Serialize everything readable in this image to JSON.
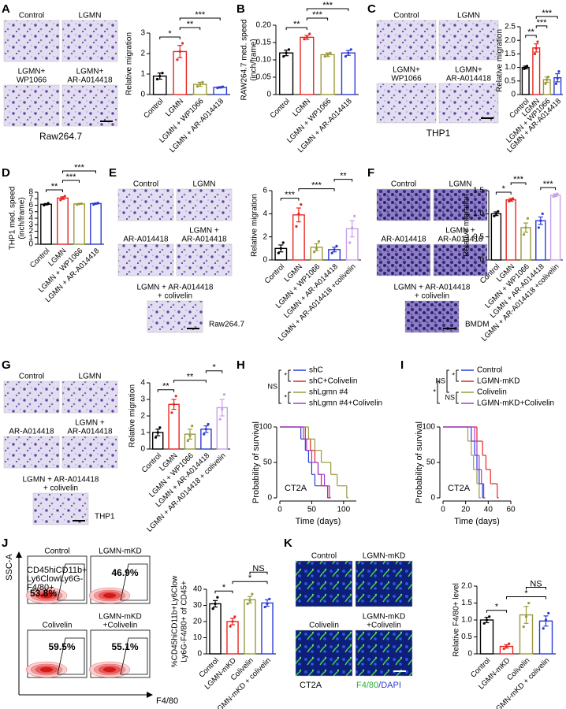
{
  "panel_letters": [
    "A",
    "B",
    "C",
    "D",
    "E",
    "F",
    "G",
    "H",
    "I",
    "J",
    "K"
  ],
  "micrographs": {
    "A": {
      "labels": [
        [
          "Control"
        ],
        [
          "LGMN"
        ],
        [
          "LGMN+",
          "WP1066"
        ],
        [
          "LGMN+",
          "AR-A014418"
        ]
      ],
      "caption": "Raw264.7"
    },
    "C": {
      "labels": [
        [
          "Control"
        ],
        [
          "LGMN"
        ],
        [
          "LGMN+",
          "WP1066"
        ],
        [
          "LGMN+",
          "AR-A014418"
        ]
      ],
      "caption": "THP1"
    },
    "E": {
      "labels": [
        [
          "Control"
        ],
        [
          "LGMN"
        ],
        [
          "AR-A014418"
        ],
        [
          "LGMN +",
          "AR-A014418"
        ],
        [
          "LGMN + AR-A014418",
          "+ colivelin"
        ]
      ],
      "caption": "Raw264.7"
    },
    "F": {
      "labels": [
        [
          "Control"
        ],
        [
          "LGMN"
        ],
        [
          "AR-A014418"
        ],
        [
          "LGMN +",
          "AR-A014418"
        ],
        [
          "LGMN + AR-A014418",
          "+ colivelin"
        ]
      ],
      "caption": "BMDM"
    },
    "G": {
      "labels": [
        [
          "Control"
        ],
        [
          "LGMN"
        ],
        [
          "AR-A014418"
        ],
        [
          "LGMN +",
          "AR-A014418"
        ],
        [
          "LGMN + AR-A014418",
          "+ colivelin"
        ]
      ],
      "caption": "THP1"
    },
    "K": {
      "labels": [
        [
          "Control"
        ],
        [
          "LGMN-mKD"
        ],
        [
          "Colivelin"
        ],
        [
          "LGMN-mKD",
          "+Colivelin"
        ]
      ],
      "caption": "CT2A",
      "stain": [
        "F4/80",
        "/DAPI"
      ]
    }
  },
  "flow": {
    "labels": [
      [
        "Control"
      ],
      [
        "LGMN-mKD"
      ],
      [
        "Colivelin"
      ],
      [
        "LGMN-mKD",
        "+Colivelin"
      ]
    ],
    "percents": [
      "53.8%",
      "46.9%",
      "59.5%",
      "55.1%"
    ],
    "gate": [
      "CD45hiCD11b+",
      "Ly6ClowLy6G-",
      "F4/80+"
    ],
    "ylabel": "SSC-A",
    "xlabel": "F4/80"
  },
  "chart_data": [
    {
      "type": "bar",
      "ylabel": "Relative migration",
      "categories": [
        "Control",
        "LGMN",
        "LGMN + WP1066",
        "LGMN + AR-A014418"
      ],
      "colors": [
        "#000000",
        "#e8251f",
        "#9a9a3c",
        "#2b3bd6"
      ],
      "values": [
        0.9,
        2.1,
        0.5,
        0.35
      ],
      "errors": [
        0.15,
        0.3,
        0.1,
        0.03
      ],
      "points": [
        [
          0.75,
          0.9,
          1.05
        ],
        [
          1.7,
          2.1,
          2.5
        ],
        [
          0.4,
          0.5,
          0.6
        ],
        [
          0.32,
          0.35,
          0.38
        ]
      ],
      "ylim": [
        0,
        3
      ],
      "yticks": [
        0,
        1,
        2,
        3
      ],
      "significance": [
        {
          "pair": [
            "Control",
            "LGMN"
          ],
          "label": "*"
        },
        {
          "pair": [
            "LGMN",
            "LGMN + WP1066"
          ],
          "label": "**"
        },
        {
          "pair": [
            "LGMN",
            "LGMN + AR-A014418"
          ],
          "label": "***"
        }
      ]
    },
    {
      "type": "bar",
      "ylabel": [
        "RAW264.7 med. speed",
        "(inch/frame)"
      ],
      "categories": [
        "Control",
        "LGMN",
        "LGMN + WP1066",
        "LGMN + AR-A014418"
      ],
      "colors": [
        "#000000",
        "#e8251f",
        "#9a9a3c",
        "#2b3bd6"
      ],
      "values": [
        0.12,
        0.165,
        0.115,
        0.12
      ],
      "errors": [
        0.008,
        0.006,
        0.005,
        0.007
      ],
      "points": [
        [
          0.11,
          0.12,
          0.13
        ],
        [
          0.16,
          0.165,
          0.175
        ],
        [
          0.11,
          0.115,
          0.12
        ],
        [
          0.11,
          0.12,
          0.13
        ]
      ],
      "ylim": [
        0,
        0.2
      ],
      "yticks": [
        0,
        0.05,
        {
          "value": 0.1,
          "label": "0.10"
        },
        0.15,
        {
          "value": 0.2,
          "label": "0.20"
        }
      ],
      "significance": [
        {
          "pair": [
            "Control",
            "LGMN"
          ],
          "label": "**"
        },
        {
          "pair": [
            "LGMN",
            "LGMN + WP1066"
          ],
          "label": "***"
        },
        {
          "pair": [
            "LGMN",
            "LGMN + AR-A014418"
          ],
          "label": "***"
        }
      ]
    },
    {
      "type": "bar",
      "ylabel": "Relative migration",
      "categories": [
        "Control",
        "LGMN",
        "LGMN + WP1066",
        "LGMN + AR-A014418"
      ],
      "colors": [
        "#000000",
        "#e8251f",
        "#9a9a3c",
        "#2b3bd6"
      ],
      "values": [
        1.0,
        1.72,
        0.55,
        0.62
      ],
      "errors": [
        0.05,
        0.15,
        0.1,
        0.15
      ],
      "points": [
        [
          0.95,
          1.0,
          1.05
        ],
        [
          1.5,
          1.7,
          1.95
        ],
        [
          0.4,
          0.55,
          0.65
        ],
        [
          0.4,
          0.6,
          0.85
        ]
      ],
      "ylim": [
        0,
        2.5
      ],
      "yticks": [
        0,
        0.5,
        {
          "value": 1,
          "label": "1.0"
        },
        1.5,
        {
          "value": 2,
          "label": "2.0"
        },
        2.5
      ],
      "significance": [
        {
          "pair": [
            "Control",
            "LGMN"
          ],
          "label": "**"
        },
        {
          "pair": [
            "LGMN",
            "LGMN + WP1066"
          ],
          "label": "***"
        },
        {
          "pair": [
            "LGMN",
            "LGMN + AR-A014418"
          ],
          "label": "***"
        }
      ]
    },
    {
      "type": "bar",
      "ylabel": [
        "THP1 med. speed",
        "(inch/frame)"
      ],
      "categories": [
        "Control",
        "LGMN",
        "LGMN + WP1066",
        "LGMN + AR-A014418"
      ],
      "colors": [
        "#000000",
        "#e8251f",
        "#9a9a3c",
        "#2b3bd6"
      ],
      "values": [
        6.15,
        7.1,
        6.2,
        6.25
      ],
      "errors": [
        0.1,
        0.2,
        0.05,
        0.08
      ],
      "points": [
        [
          6.0,
          6.15,
          6.3
        ],
        [
          6.8,
          7.1,
          7.4
        ],
        [
          6.1,
          6.2,
          6.25
        ],
        [
          6.1,
          6.25,
          6.35
        ]
      ],
      "ylim": [
        0,
        8
      ],
      "yticks": [
        0,
        1,
        2,
        3,
        4,
        5,
        6,
        7,
        8
      ],
      "significance": [
        {
          "pair": [
            "Control",
            "LGMN"
          ],
          "label": "**"
        },
        {
          "pair": [
            "LGMN",
            "LGMN + WP1066"
          ],
          "label": "***"
        },
        {
          "pair": [
            "LGMN",
            "LGMN + AR-A014418"
          ],
          "label": "***"
        }
      ]
    },
    {
      "type": "bar",
      "ylabel": "Relative migration",
      "categories": [
        "Control",
        "LGMN",
        "LGMN + WP1066",
        "LGMN + AR-A014418",
        "LGMN + AR-A014418 +colivelin"
      ],
      "colors": [
        "#000000",
        "#e8251f",
        "#9a9a3c",
        "#2b3bd6",
        "#c7a0ea"
      ],
      "values": [
        1.0,
        3.9,
        1.1,
        0.9,
        2.7
      ],
      "errors": [
        0.3,
        0.6,
        0.3,
        0.2,
        0.7
      ],
      "points": [
        [
          0.6,
          1.0,
          1.5
        ],
        [
          2.9,
          4.0,
          4.8
        ],
        [
          0.7,
          1.0,
          1.6
        ],
        [
          0.6,
          0.9,
          1.2
        ],
        [
          1.5,
          2.8,
          3.8
        ]
      ],
      "ylim": [
        0,
        6
      ],
      "yticks": [
        0,
        2,
        4,
        6
      ],
      "significance": [
        {
          "pair": [
            "Control",
            "LGMN"
          ],
          "label": "***"
        },
        {
          "pair": [
            "LGMN",
            "LGMN + AR-A014418"
          ],
          "label": "***"
        },
        {
          "pair": [
            "LGMN + AR-A014418",
            "LGMN + AR-A014418 +colivelin"
          ],
          "label": "**"
        }
      ]
    },
    {
      "type": "bar",
      "ylabel": "Relative migration",
      "categories": [
        "Control",
        "LGMN",
        "LGMN + WP1066",
        "LGMN + AR-A014418",
        "LGMN + AR-A014418 +colivelin"
      ],
      "colors": [
        "#000000",
        "#e8251f",
        "#9a9a3c",
        "#2b3bd6",
        "#c7a0ea"
      ],
      "values": [
        1.0,
        1.3,
        0.7,
        0.85,
        1.4
      ],
      "errors": [
        0.04,
        0.03,
        0.1,
        0.08,
        0.03
      ],
      "points": [
        [
          0.95,
          1.0,
          1.05
        ],
        [
          1.27,
          1.3,
          1.33
        ],
        [
          0.55,
          0.7,
          0.9
        ],
        [
          0.7,
          0.85,
          1.0
        ],
        [
          1.37,
          1.4,
          1.43
        ]
      ],
      "ylim": [
        0,
        1.5
      ],
      "yticks": [
        0,
        0.5,
        {
          "value": 1,
          "label": "1.0"
        },
        1.5
      ],
      "significance": [
        {
          "pair": [
            "Control",
            "LGMN"
          ],
          "label": "*"
        },
        {
          "pair": [
            "LGMN",
            "LGMN + WP1066"
          ],
          "label": "***"
        },
        {
          "pair": [
            "LGMN + AR-A014418",
            "LGMN + AR-A014418 +colivelin"
          ],
          "label": "***"
        }
      ]
    },
    {
      "type": "bar",
      "ylabel": "Relative migration",
      "categories": [
        "Control",
        "LGMN",
        "LGMN + WP1066",
        "LGMN + AR-A014418",
        "LGMN + AR-A014418 + colivelin"
      ],
      "colors": [
        "#000000",
        "#e8251f",
        "#9a9a3c",
        "#2b3bd6",
        "#c7a0ea"
      ],
      "values": [
        1.0,
        2.7,
        0.9,
        1.2,
        2.5
      ],
      "errors": [
        0.2,
        0.3,
        0.3,
        0.2,
        0.5
      ],
      "points": [
        [
          0.7,
          1.0,
          1.3
        ],
        [
          2.2,
          2.7,
          3.2
        ],
        [
          0.5,
          0.8,
          1.4
        ],
        [
          0.9,
          1.2,
          1.5
        ],
        [
          1.8,
          2.4,
          3.3
        ]
      ],
      "ylim": [
        0,
        4
      ],
      "yticks": [
        0,
        1,
        2,
        3,
        4
      ],
      "significance": [
        {
          "pair": [
            "Control",
            "LGMN"
          ],
          "label": "**"
        },
        {
          "pair": [
            "LGMN",
            "LGMN + AR-A014418"
          ],
          "label": "**"
        },
        {
          "pair": [
            "LGMN + AR-A014418",
            "LGMN + AR-A014418 + colivelin"
          ],
          "label": "*"
        }
      ]
    },
    {
      "type": "survival",
      "ylabel": "Probability of survival",
      "xlabel": "Time (days)",
      "annotation": "CT2A",
      "xlim": [
        0,
        120
      ],
      "xticks": [
        0,
        50,
        100
      ],
      "ylim": [
        0,
        100
      ],
      "yticks": [
        0,
        50,
        100
      ],
      "series": [
        {
          "name": "shC",
          "color": "#2b3bd6",
          "x": [
            0,
            33,
            40,
            45,
            50,
            55,
            75
          ],
          "values": [
            100,
            83,
            67,
            50,
            33,
            17,
            0
          ]
        },
        {
          "name": "shC+Colivelin",
          "color": "#e8251f",
          "x": [
            0,
            40,
            48,
            55,
            60,
            65,
            75
          ],
          "values": [
            100,
            83,
            67,
            50,
            33,
            17,
            0
          ]
        },
        {
          "name": "shLgmn #4",
          "color": "#9a9a3c",
          "x": [
            0,
            45,
            55,
            65,
            80,
            90,
            105
          ],
          "values": [
            100,
            83,
            67,
            50,
            33,
            17,
            0
          ]
        },
        {
          "name": "shLgmn #4+Colivelin",
          "color": "#a23ad6",
          "x": [
            0,
            37,
            42,
            50,
            60,
            70,
            78
          ],
          "values": [
            100,
            83,
            67,
            50,
            33,
            17,
            0
          ]
        }
      ],
      "significance": [
        {
          "pair": [
            "shC",
            "shC+Colivelin"
          ],
          "label": "*"
        },
        {
          "pair": [
            "shLgmn #4",
            "shLgmn #4+Colivelin"
          ],
          "label": "*"
        },
        {
          "pair": [
            "shC",
            "shLgmn #4+Colivelin"
          ],
          "label": "NS"
        }
      ]
    },
    {
      "type": "survival",
      "ylabel": "Probability of survival",
      "xlabel": "Time (days)",
      "annotation": "CT2A",
      "xlim": [
        0,
        60
      ],
      "xticks": [
        0,
        20,
        40,
        60
      ],
      "ylim": [
        0,
        100
      ],
      "yticks": [
        0,
        50,
        100
      ],
      "series": [
        {
          "name": "Control",
          "color": "#2b3bd6",
          "x": [
            0,
            25,
            28,
            30,
            32,
            35
          ],
          "values": [
            100,
            80,
            60,
            40,
            20,
            0
          ]
        },
        {
          "name": "LGMN-mKD",
          "color": "#e8251f",
          "x": [
            0,
            30,
            35,
            38,
            42,
            48
          ],
          "values": [
            100,
            80,
            60,
            40,
            20,
            0
          ]
        },
        {
          "name": "Colivelin",
          "color": "#9a9a3c",
          "x": [
            0,
            22,
            25,
            27,
            30,
            32
          ],
          "values": [
            100,
            80,
            60,
            40,
            20,
            0
          ]
        },
        {
          "name": "LGMN-mKD+Colivelin",
          "color": "#a23ad6",
          "x": [
            0,
            28,
            30,
            32,
            34,
            36
          ],
          "values": [
            100,
            80,
            60,
            40,
            20,
            0
          ]
        }
      ],
      "significance": [
        {
          "pair": [
            "Control",
            "LGMN-mKD"
          ],
          "label": "*"
        },
        {
          "pair": [
            "Colivelin",
            "LGMN-mKD+Colivelin"
          ],
          "label": "NS"
        },
        {
          "pair": [
            "Control",
            "Colivelin"
          ],
          "label": "NS"
        },
        {
          "pair": [
            "LGMN-mKD",
            "LGMN-mKD+Colivelin"
          ],
          "label": "*"
        }
      ]
    },
    {
      "type": "bar",
      "ylabel": [
        "%CD45hiCD11b+Ly6Clow",
        "Ly6G-F4/80+ of CD45+"
      ],
      "categories": [
        "Control",
        "LGMN-mKD",
        "Colivelin",
        "LGMN-mKD + colivelin"
      ],
      "colors": [
        "#000000",
        "#e8251f",
        "#9a9a3c",
        "#2b3bd6"
      ],
      "values": [
        31,
        20,
        33.5,
        31.5
      ],
      "errors": [
        2,
        2,
        2,
        2
      ],
      "points": [
        [
          28,
          31,
          35
        ],
        [
          17,
          20,
          23
        ],
        [
          31,
          33,
          37
        ],
        [
          29,
          31,
          34
        ]
      ],
      "ylim": [
        0,
        40
      ],
      "yticks": [
        0,
        10,
        20,
        30,
        40
      ],
      "significance": [
        {
          "pair": [
            "Control",
            "LGMN-mKD"
          ],
          "label": "*"
        },
        {
          "pair": [
            "LGMN-mKD",
            "LGMN-mKD + colivelin"
          ],
          "label": "*"
        },
        {
          "pair": [
            "Colivelin",
            "LGMN-mKD + colivelin"
          ],
          "label": "NS"
        }
      ]
    },
    {
      "type": "bar",
      "ylabel": "Relative F4/80+ level",
      "categories": [
        "Control",
        "LGMN-mKD",
        "Colivelin",
        "LGMN-mKD + colivelin"
      ],
      "colors": [
        "#000000",
        "#e8251f",
        "#9a9a3c",
        "#2b3bd6"
      ],
      "values": [
        1.0,
        0.22,
        1.15,
        0.97
      ],
      "errors": [
        0.08,
        0.05,
        0.25,
        0.15
      ],
      "points": [
        [
          0.9,
          1.0,
          1.1
        ],
        [
          0.15,
          0.22,
          0.3
        ],
        [
          0.8,
          1.1,
          1.5
        ],
        [
          0.75,
          1.0,
          1.2
        ]
      ],
      "ylim": [
        0,
        2
      ],
      "yticks": [
        0,
        0.5,
        {
          "value": 1,
          "label": "1.0"
        },
        1.5,
        {
          "value": 2,
          "label": "2.0"
        }
      ],
      "significance": [
        {
          "pair": [
            "Control",
            "LGMN-mKD"
          ],
          "label": "*"
        },
        {
          "pair": [
            "LGMN-mKD",
            "LGMN-mKD + colivelin"
          ],
          "label": "*"
        },
        {
          "pair": [
            "Colivelin",
            "LGMN-mKD + colivelin"
          ],
          "label": "NS"
        }
      ]
    }
  ]
}
